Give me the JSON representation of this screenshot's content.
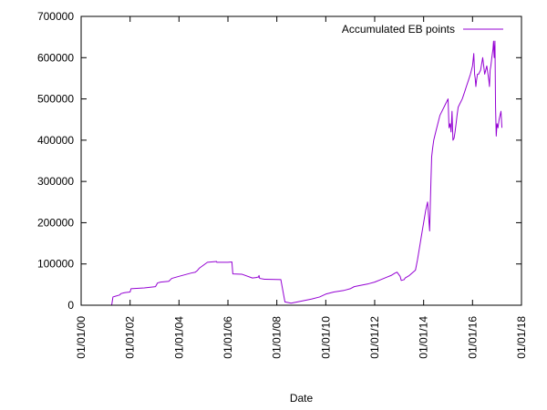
{
  "chart_data": {
    "type": "line",
    "title": "",
    "xlabel": "Date",
    "ylabel": "",
    "xlim": [
      "2000-01-01",
      "2018-01-01"
    ],
    "ylim": [
      0,
      700000
    ],
    "grid": false,
    "legend_position": "top-right",
    "x_ticks": [
      "2000-01-01",
      "2002-01-01",
      "2004-01-01",
      "2006-01-01",
      "2008-01-01",
      "2010-01-01",
      "2012-01-01",
      "2014-01-01",
      "2016-01-01",
      "2018-01-01"
    ],
    "x_tick_labels": [
      "01/01/00",
      "01/01/02",
      "01/01/04",
      "01/01/06",
      "01/01/08",
      "01/01/10",
      "01/01/12",
      "01/01/14",
      "01/01/16",
      "01/01/18"
    ],
    "y_ticks": [
      0,
      100000,
      200000,
      300000,
      400000,
      500000,
      600000,
      700000
    ],
    "y_tick_labels": [
      "0",
      "100000",
      "200000",
      "300000",
      "400000",
      "500000",
      "600000",
      "700000"
    ],
    "series": [
      {
        "name": "Accumulated EB points",
        "color": "#9400d3",
        "x": [
          "2001-04-01",
          "2001-04-20",
          "2001-06-01",
          "2001-08-01",
          "2001-08-15",
          "2001-10-01",
          "2001-11-01",
          "2002-01-01",
          "2002-01-15",
          "2002-08-01",
          "2003-01-15",
          "2003-02-15",
          "2003-04-01",
          "2003-08-01",
          "2003-09-15",
          "2004-01-01",
          "2004-07-01",
          "2004-09-01",
          "2004-09-15",
          "2004-10-01",
          "2004-11-01",
          "2005-03-01",
          "2005-07-15",
          "2005-07-20",
          "2006-01-01",
          "2006-03-01",
          "2006-03-15",
          "2006-08-01",
          "2007-01-01",
          "2007-03-01",
          "2007-03-15",
          "2007-04-01",
          "2007-04-10",
          "2007-04-20",
          "2007-07-01",
          "2007-07-15",
          "2008-03-01",
          "2008-05-01",
          "2008-08-01",
          "2009-01-01",
          "2009-06-01",
          "2009-10-01",
          "2010-01-01",
          "2010-05-01",
          "2010-10-01",
          "2011-01-01",
          "2011-03-01",
          "2011-06-01",
          "2011-10-01",
          "2012-01-01",
          "2012-04-01",
          "2012-07-01",
          "2012-09-01",
          "2012-11-01",
          "2012-12-01",
          "2013-01-15",
          "2013-02-01",
          "2013-03-15",
          "2013-04-01",
          "2013-06-01",
          "2013-09-01",
          "2013-10-01",
          "2013-11-01",
          "2013-12-01",
          "2014-01-01",
          "2014-02-01",
          "2014-03-01",
          "2014-04-01",
          "2014-04-10",
          "2014-04-20",
          "2014-05-01",
          "2014-05-15",
          "2014-06-01",
          "2014-07-01",
          "2014-08-01",
          "2014-09-01",
          "2014-10-01",
          "2014-11-01",
          "2014-12-01",
          "2015-01-01",
          "2015-01-15",
          "2015-02-01",
          "2015-02-15",
          "2015-03-01",
          "2015-03-15",
          "2015-04-01",
          "2015-04-15",
          "2015-05-01",
          "2015-05-15",
          "2015-06-01",
          "2015-07-01",
          "2015-08-01",
          "2015-09-01",
          "2015-10-01",
          "2015-11-01",
          "2015-12-01",
          "2016-01-01",
          "2016-01-20",
          "2016-02-01",
          "2016-02-10",
          "2016-02-20",
          "2016-03-01",
          "2016-03-15",
          "2016-04-01",
          "2016-05-01",
          "2016-06-01",
          "2016-07-01",
          "2016-08-01",
          "2016-09-01",
          "2016-09-10",
          "2016-09-20",
          "2016-10-01",
          "2016-10-15",
          "2016-11-01",
          "2016-11-10",
          "2016-11-20",
          "2016-12-01",
          "2016-12-10",
          "2016-12-20",
          "2017-01-01",
          "2017-01-15",
          "2017-02-01",
          "2017-02-15",
          "2017-03-01",
          "2017-03-15"
        ],
        "y": [
          0,
          20000,
          22000,
          25000,
          28000,
          30000,
          31000,
          32000,
          40000,
          42000,
          45000,
          54000,
          56000,
          58000,
          65000,
          70000,
          78000,
          80000,
          82000,
          84000,
          90000,
          104000,
          106000,
          104000,
          104000,
          105000,
          76000,
          75000,
          66000,
          67000,
          68000,
          68000,
          72000,
          65000,
          63000,
          63000,
          62000,
          8000,
          5000,
          10000,
          15000,
          20000,
          27000,
          32000,
          36000,
          40000,
          45000,
          48000,
          52000,
          56000,
          62000,
          68000,
          72000,
          78000,
          80000,
          70000,
          60000,
          62000,
          66000,
          72000,
          85000,
          110000,
          140000,
          170000,
          200000,
          230000,
          250000,
          180000,
          240000,
          300000,
          360000,
          380000,
          400000,
          420000,
          440000,
          460000,
          470000,
          480000,
          490000,
          500000,
          430000,
          440000,
          420000,
          470000,
          400000,
          405000,
          420000,
          440000,
          460000,
          480000,
          490000,
          500000,
          515000,
          530000,
          545000,
          560000,
          580000,
          610000,
          560000,
          550000,
          530000,
          545000,
          560000,
          560000,
          570000,
          600000,
          560000,
          580000,
          545000,
          530000,
          570000,
          580000,
          600000,
          620000,
          640000,
          600000,
          640000,
          480000,
          410000,
          440000,
          430000,
          450000,
          460000,
          470000,
          430000
        ]
      }
    ]
  }
}
